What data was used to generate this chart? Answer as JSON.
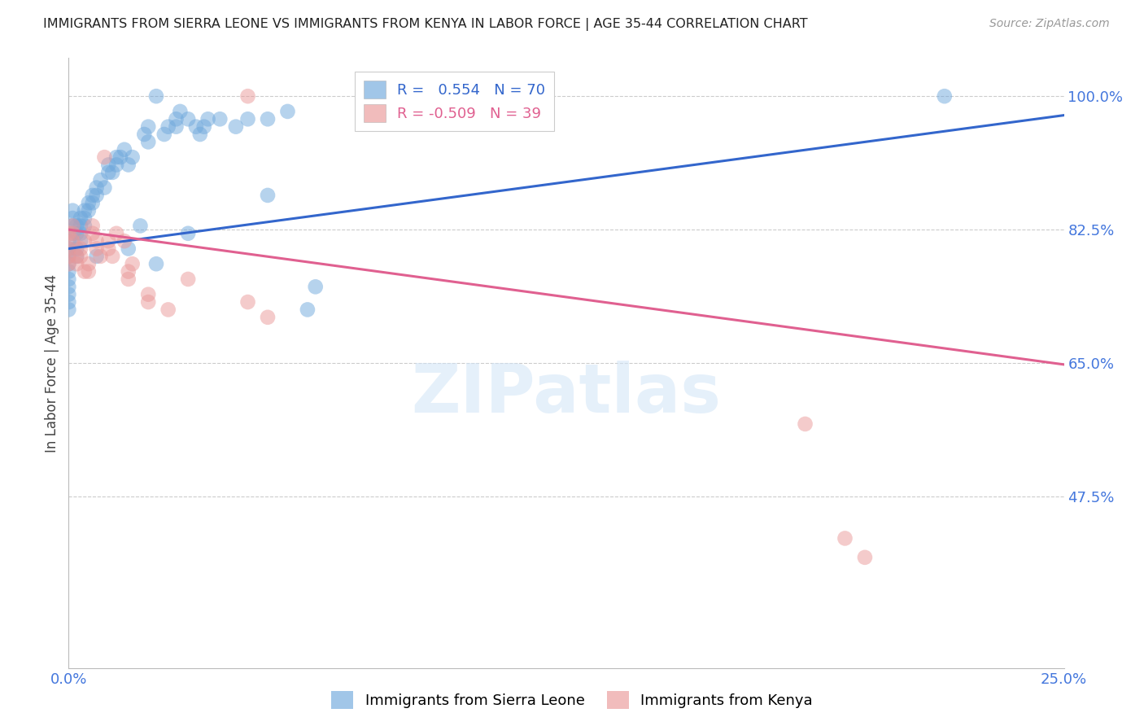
{
  "title": "IMMIGRANTS FROM SIERRA LEONE VS IMMIGRANTS FROM KENYA IN LABOR FORCE | AGE 35-44 CORRELATION CHART",
  "source": "Source: ZipAtlas.com",
  "ylabel": "In Labor Force | Age 35-44",
  "xlim": [
    0.0,
    0.25
  ],
  "ylim": [
    0.25,
    1.05
  ],
  "ytick_vals": [
    0.475,
    0.65,
    0.825,
    1.0
  ],
  "ytick_labels": [
    "47.5%",
    "65.0%",
    "82.5%",
    "100.0%"
  ],
  "xtick_vals": [
    0.0,
    0.25
  ],
  "xtick_labels": [
    "0.0%",
    "25.0%"
  ],
  "sierra_leone_color": "#6fa8dc",
  "kenya_color": "#ea9999",
  "sierra_leone_line_color": "#3366cc",
  "kenya_line_color": "#e06090",
  "background_color": "#ffffff",
  "grid_color": "#cccccc",
  "title_color": "#222222",
  "axis_label_color": "#444444",
  "tick_label_color": "#4477dd",
  "watermark_text": "ZIPatlas",
  "legend_sl_text": "R =   0.554   N = 70",
  "legend_ke_text": "R = -0.509   N = 39",
  "bottom_legend_sl": "Immigrants from Sierra Leone",
  "bottom_legend_ke": "Immigrants from Kenya",
  "sl_line_x": [
    0.0,
    0.25
  ],
  "sl_line_y": [
    0.8,
    0.975
  ],
  "ke_line_x": [
    0.0,
    0.25
  ],
  "ke_line_y": [
    0.825,
    0.648
  ],
  "sierra_leone_points": [
    [
      0.0,
      0.76
    ],
    [
      0.0,
      0.77
    ],
    [
      0.0,
      0.78
    ],
    [
      0.0,
      0.79
    ],
    [
      0.0,
      0.8
    ],
    [
      0.0,
      0.81
    ],
    [
      0.0,
      0.75
    ],
    [
      0.0,
      0.74
    ],
    [
      0.0,
      0.73
    ],
    [
      0.0,
      0.72
    ],
    [
      0.001,
      0.82
    ],
    [
      0.001,
      0.83
    ],
    [
      0.001,
      0.84
    ],
    [
      0.001,
      0.85
    ],
    [
      0.002,
      0.82
    ],
    [
      0.002,
      0.83
    ],
    [
      0.002,
      0.8
    ],
    [
      0.002,
      0.79
    ],
    [
      0.003,
      0.84
    ],
    [
      0.003,
      0.83
    ],
    [
      0.003,
      0.82
    ],
    [
      0.003,
      0.81
    ],
    [
      0.004,
      0.85
    ],
    [
      0.004,
      0.84
    ],
    [
      0.004,
      0.83
    ],
    [
      0.005,
      0.86
    ],
    [
      0.005,
      0.85
    ],
    [
      0.006,
      0.87
    ],
    [
      0.006,
      0.86
    ],
    [
      0.007,
      0.88
    ],
    [
      0.007,
      0.87
    ],
    [
      0.007,
      0.79
    ],
    [
      0.008,
      0.89
    ],
    [
      0.009,
      0.88
    ],
    [
      0.01,
      0.91
    ],
    [
      0.01,
      0.9
    ],
    [
      0.011,
      0.9
    ],
    [
      0.012,
      0.91
    ],
    [
      0.012,
      0.92
    ],
    [
      0.013,
      0.92
    ],
    [
      0.014,
      0.93
    ],
    [
      0.015,
      0.91
    ],
    [
      0.015,
      0.8
    ],
    [
      0.016,
      0.92
    ],
    [
      0.018,
      0.83
    ],
    [
      0.019,
      0.95
    ],
    [
      0.02,
      0.96
    ],
    [
      0.02,
      0.94
    ],
    [
      0.022,
      0.78
    ],
    [
      0.022,
      1.0
    ],
    [
      0.024,
      0.95
    ],
    [
      0.025,
      0.96
    ],
    [
      0.027,
      0.97
    ],
    [
      0.027,
      0.96
    ],
    [
      0.028,
      0.98
    ],
    [
      0.03,
      0.82
    ],
    [
      0.03,
      0.97
    ],
    [
      0.032,
      0.96
    ],
    [
      0.033,
      0.95
    ],
    [
      0.034,
      0.96
    ],
    [
      0.035,
      0.97
    ],
    [
      0.038,
      0.97
    ],
    [
      0.042,
      0.96
    ],
    [
      0.045,
      0.97
    ],
    [
      0.05,
      0.87
    ],
    [
      0.05,
      0.97
    ],
    [
      0.055,
      0.98
    ],
    [
      0.06,
      0.72
    ],
    [
      0.062,
      0.75
    ],
    [
      0.22,
      1.0
    ]
  ],
  "kenya_points": [
    [
      0.0,
      0.8
    ],
    [
      0.0,
      0.78
    ],
    [
      0.0,
      0.82
    ],
    [
      0.0,
      0.79
    ],
    [
      0.001,
      0.81
    ],
    [
      0.001,
      0.82
    ],
    [
      0.001,
      0.83
    ],
    [
      0.002,
      0.79
    ],
    [
      0.002,
      0.78
    ],
    [
      0.003,
      0.8
    ],
    [
      0.003,
      0.79
    ],
    [
      0.004,
      0.81
    ],
    [
      0.004,
      0.77
    ],
    [
      0.005,
      0.78
    ],
    [
      0.005,
      0.77
    ],
    [
      0.006,
      0.82
    ],
    [
      0.006,
      0.83
    ],
    [
      0.007,
      0.81
    ],
    [
      0.007,
      0.8
    ],
    [
      0.008,
      0.79
    ],
    [
      0.009,
      0.92
    ],
    [
      0.01,
      0.81
    ],
    [
      0.01,
      0.8
    ],
    [
      0.011,
      0.79
    ],
    [
      0.012,
      0.82
    ],
    [
      0.014,
      0.81
    ],
    [
      0.015,
      0.77
    ],
    [
      0.015,
      0.76
    ],
    [
      0.016,
      0.78
    ],
    [
      0.02,
      0.73
    ],
    [
      0.02,
      0.74
    ],
    [
      0.025,
      0.72
    ],
    [
      0.03,
      0.76
    ],
    [
      0.045,
      0.73
    ],
    [
      0.05,
      0.71
    ],
    [
      0.045,
      1.0
    ],
    [
      0.185,
      0.57
    ],
    [
      0.195,
      0.42
    ],
    [
      0.2,
      0.395
    ]
  ]
}
